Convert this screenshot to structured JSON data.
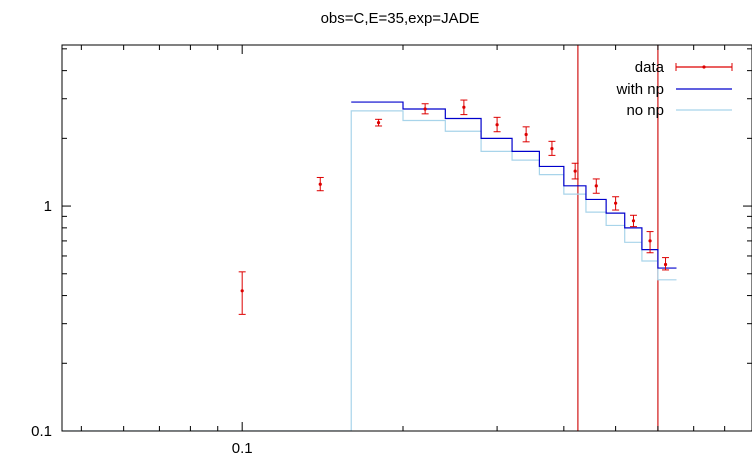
{
  "chart_data": {
    "type": "line",
    "title": "obs=C,E=35,exp=JADE",
    "xlabel": "",
    "ylabel": "",
    "x_scale": "log",
    "y_scale": "log",
    "xlim": [
      0.046,
      0.9
    ],
    "ylim": [
      0.1,
      5.2
    ],
    "x_ticks": [
      {
        "value": 0.1,
        "label": "0.1"
      }
    ],
    "y_ticks": [
      {
        "value": 0.1,
        "label": "0.1"
      },
      {
        "value": 1,
        "label": "1"
      }
    ],
    "grid": false,
    "legend_position": "top-right",
    "legend": [
      {
        "label": "data",
        "color": "#dd0000"
      },
      {
        "label": "with np",
        "color": "#0000cc"
      },
      {
        "label": "no np",
        "color": "#a8d4ea"
      }
    ],
    "series": [
      {
        "name": "data",
        "kind": "errorbar",
        "color": "#dd0000",
        "points": [
          {
            "x": 0.1,
            "y": 0.42,
            "ylo": 0.33,
            "yhi": 0.51
          },
          {
            "x": 0.14,
            "y": 1.25,
            "ylo": 1.17,
            "yhi": 1.34
          },
          {
            "x": 0.18,
            "y": 2.35,
            "ylo": 2.27,
            "yhi": 2.43
          },
          {
            "x": 0.22,
            "y": 2.7,
            "ylo": 2.57,
            "yhi": 2.85
          },
          {
            "x": 0.26,
            "y": 2.75,
            "ylo": 2.55,
            "yhi": 2.96
          },
          {
            "x": 0.3,
            "y": 2.3,
            "ylo": 2.14,
            "yhi": 2.48
          },
          {
            "x": 0.34,
            "y": 2.08,
            "ylo": 1.93,
            "yhi": 2.25
          },
          {
            "x": 0.38,
            "y": 1.8,
            "ylo": 1.68,
            "yhi": 1.94
          },
          {
            "x": 0.42,
            "y": 1.43,
            "ylo": 1.32,
            "yhi": 1.55
          },
          {
            "x": 0.46,
            "y": 1.23,
            "ylo": 1.14,
            "yhi": 1.32
          },
          {
            "x": 0.5,
            "y": 1.03,
            "ylo": 0.96,
            "yhi": 1.1
          },
          {
            "x": 0.54,
            "y": 0.86,
            "ylo": 0.81,
            "yhi": 0.91
          },
          {
            "x": 0.58,
            "y": 0.7,
            "ylo": 0.62,
            "yhi": 0.77
          },
          {
            "x": 0.62,
            "y": 0.55,
            "ylo": 0.52,
            "yhi": 0.59
          }
        ]
      },
      {
        "name": "with np",
        "kind": "step",
        "color": "#0000cc",
        "edges": [
          0.16,
          0.2,
          0.24,
          0.28,
          0.32,
          0.36,
          0.4,
          0.44,
          0.48,
          0.52,
          0.56,
          0.6,
          0.65
        ],
        "values": [
          2.9,
          2.7,
          2.45,
          2.0,
          1.75,
          1.5,
          1.23,
          1.07,
          0.93,
          0.8,
          0.64,
          0.53
        ]
      },
      {
        "name": "no np",
        "kind": "step",
        "color": "#a8d4ea",
        "edges": [
          0.0,
          0.16,
          0.2,
          0.24,
          0.28,
          0.32,
          0.36,
          0.4,
          0.44,
          0.48,
          0.52,
          0.56,
          0.6,
          0.65
        ],
        "values": [
          0.1,
          2.65,
          2.4,
          2.15,
          1.75,
          1.6,
          1.38,
          1.13,
          0.94,
          0.82,
          0.69,
          0.57,
          0.47
        ]
      }
    ],
    "vertical_lines": [
      {
        "x": 0.425,
        "color": "#cc0000"
      },
      {
        "x": 0.6,
        "color": "#cc0000"
      }
    ]
  }
}
